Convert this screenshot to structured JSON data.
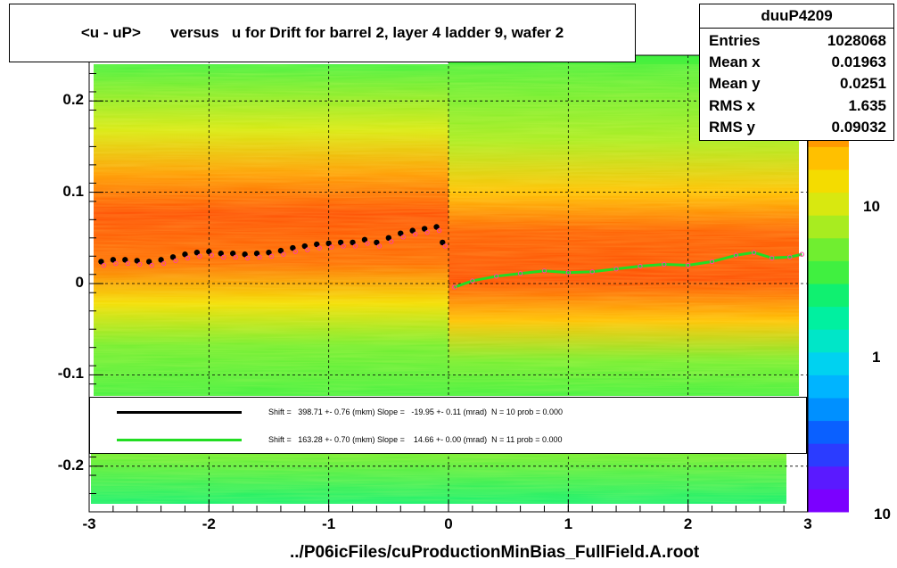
{
  "chart_data": {
    "type": "heatmap",
    "title": "<u - uP>       versus   u for Drift for barrel 2, layer 4 ladder 9, wafer 2",
    "xlabel": "../P06icFiles/cuProductionMinBias_FullField.A.root",
    "ylabel": "",
    "xlim": [
      -3,
      3
    ],
    "ylim": [
      -0.25,
      0.25
    ],
    "x_ticks": [
      "-3",
      "-2",
      "-1",
      "0",
      "1",
      "2",
      "3"
    ],
    "y_ticks": [
      "-0.2",
      "-0.1",
      "0",
      "0.1",
      "0.2"
    ],
    "z_ticks": [
      "1",
      "10"
    ],
    "z_bottom_label": "10",
    "z_scale": "log",
    "grid": true,
    "series": [
      {
        "style": "black-markers",
        "x": [
          -2.9,
          -2.8,
          -2.7,
          -2.6,
          -2.5,
          -2.4,
          -2.3,
          -2.2,
          -2.1,
          -2.0,
          -1.9,
          -1.8,
          -1.7,
          -1.6,
          -1.5,
          -1.4,
          -1.3,
          -1.2,
          -1.1,
          -1.0,
          -0.9,
          -0.8,
          -0.7,
          -0.6,
          -0.5,
          -0.4,
          -0.3,
          -0.2,
          -0.1,
          -0.05
        ],
        "y": [
          0.024,
          0.026,
          0.026,
          0.025,
          0.024,
          0.026,
          0.029,
          0.032,
          0.034,
          0.035,
          0.033,
          0.033,
          0.032,
          0.033,
          0.034,
          0.036,
          0.039,
          0.041,
          0.043,
          0.044,
          0.045,
          0.045,
          0.048,
          0.045,
          0.05,
          0.055,
          0.058,
          0.06,
          0.062,
          0.045
        ]
      },
      {
        "style": "green-line",
        "x": [
          0.05,
          0.2,
          0.4,
          0.6,
          0.8,
          1.0,
          1.2,
          1.4,
          1.6,
          1.8,
          2.0,
          2.2,
          2.4,
          2.55,
          2.7,
          2.85,
          2.95
        ],
        "y": [
          -0.004,
          0.003,
          0.008,
          0.011,
          0.014,
          0.012,
          0.013,
          0.016,
          0.019,
          0.021,
          0.02,
          0.024,
          0.031,
          0.034,
          0.028,
          0.029,
          0.032
        ]
      }
    ],
    "stats": {
      "name": "duuP4209",
      "rows": [
        {
          "label": "Entries",
          "value": "1028068"
        },
        {
          "label": "Mean x",
          "value": "0.01963"
        },
        {
          "label": "Mean y",
          "value": "0.0251"
        },
        {
          "label": "RMS x",
          "value": "1.635"
        },
        {
          "label": "RMS y",
          "value": "0.09032"
        }
      ]
    },
    "legend": [
      {
        "color": "#000000",
        "text": "Shift =   398.71 +- 0.76 (mkm) Slope =   -19.95 +- 0.11 (mrad)  N = 10 prob = 0.000"
      },
      {
        "color": "#22dd22",
        "text": "Shift =   163.28 +- 0.70 (mkm) Slope =    14.66 +- 0.00 (mrad)  N = 11 prob = 0.000"
      }
    ],
    "colors": {
      "palette": [
        "#7b00ff",
        "#5a1aff",
        "#2b3cff",
        "#0a60ff",
        "#0090ff",
        "#00b4ff",
        "#00d2f0",
        "#00e6c8",
        "#00f0a0",
        "#10f070",
        "#40f040",
        "#70ee30",
        "#a8ec20",
        "#d8e810",
        "#f4dc00",
        "#ffc000",
        "#ff9a00",
        "#ff7200",
        "#ff4a00",
        "#ff2800"
      ]
    }
  }
}
